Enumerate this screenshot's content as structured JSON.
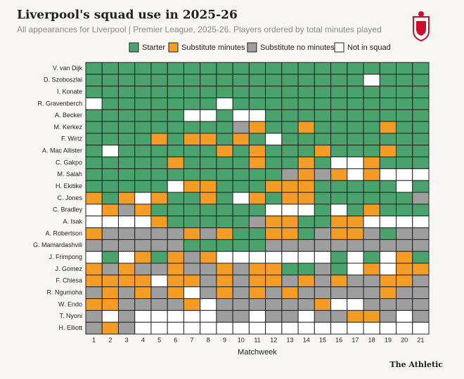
{
  "chart_data": {
    "type": "heatmap",
    "title": "Liverpool's squad use in 2025-26",
    "subtitle": "All appearances for Liverpool | Premier League, 2025-26. Players ordered by total minutes played",
    "x_label": "Matchweek",
    "source": "The Athletic",
    "categories": [
      1,
      2,
      3,
      4,
      5,
      6,
      7,
      8,
      9,
      10,
      11,
      12,
      13,
      14,
      15,
      16,
      17,
      18,
      19,
      20,
      21
    ],
    "legend": [
      {
        "name": "Starter",
        "color": "#4aa36c"
      },
      {
        "name": "Substitute minutes",
        "color": "#f39c26"
      },
      {
        "name": "Substitute no minutes",
        "color": "#9e9e9e"
      },
      {
        "name": "Not in squad",
        "color": "#ffffff"
      }
    ],
    "rows": [
      {
        "name": "V. van Dijk",
        "values": [
          0,
          0,
          0,
          0,
          0,
          0,
          0,
          0,
          0,
          0,
          0,
          0,
          0,
          0,
          0,
          0,
          0,
          0,
          0,
          0,
          0
        ]
      },
      {
        "name": "D. Szoboszlai",
        "values": [
          0,
          0,
          0,
          0,
          0,
          0,
          0,
          0,
          0,
          0,
          0,
          0,
          0,
          0,
          0,
          0,
          0,
          3,
          0,
          0,
          0
        ]
      },
      {
        "name": "I. Konate",
        "values": [
          0,
          0,
          0,
          0,
          0,
          0,
          0,
          0,
          0,
          0,
          0,
          0,
          0,
          0,
          0,
          0,
          0,
          0,
          0,
          0,
          0
        ]
      },
      {
        "name": "R. Gravenberch",
        "values": [
          3,
          0,
          0,
          0,
          0,
          0,
          0,
          0,
          3,
          0,
          0,
          0,
          0,
          0,
          0,
          0,
          0,
          0,
          0,
          0,
          0
        ]
      },
      {
        "name": "A. Becker",
        "values": [
          0,
          0,
          0,
          0,
          0,
          0,
          3,
          3,
          0,
          3,
          3,
          0,
          0,
          0,
          0,
          0,
          0,
          0,
          0,
          0,
          0
        ]
      },
      {
        "name": "M. Kerkez",
        "values": [
          0,
          0,
          0,
          0,
          0,
          0,
          0,
          0,
          0,
          2,
          1,
          0,
          0,
          1,
          0,
          0,
          0,
          0,
          1,
          0,
          0
        ]
      },
      {
        "name": "F. Wirtz",
        "values": [
          0,
          0,
          0,
          0,
          1,
          0,
          1,
          1,
          0,
          1,
          0,
          3,
          0,
          0,
          0,
          0,
          0,
          0,
          0,
          0,
          0
        ]
      },
      {
        "name": "A. Mac Allister",
        "values": [
          0,
          3,
          0,
          0,
          0,
          0,
          0,
          0,
          1,
          0,
          1,
          0,
          0,
          0,
          1,
          0,
          0,
          0,
          1,
          0,
          0
        ]
      },
      {
        "name": "C. Gakpo",
        "values": [
          0,
          0,
          0,
          0,
          0,
          1,
          0,
          0,
          0,
          0,
          1,
          0,
          0,
          1,
          0,
          3,
          3,
          1,
          0,
          0,
          0
        ]
      },
      {
        "name": "M. Salah",
        "values": [
          0,
          0,
          0,
          0,
          0,
          0,
          0,
          0,
          0,
          0,
          0,
          0,
          2,
          1,
          2,
          1,
          3,
          1,
          3,
          3,
          3
        ]
      },
      {
        "name": "H. Ekitike",
        "values": [
          0,
          0,
          0,
          0,
          0,
          3,
          1,
          1,
          0,
          0,
          0,
          1,
          1,
          1,
          0,
          0,
          0,
          0,
          0,
          3,
          0
        ]
      },
      {
        "name": "C. Jones",
        "values": [
          1,
          0,
          1,
          3,
          1,
          0,
          0,
          1,
          0,
          3,
          1,
          0,
          1,
          1,
          0,
          0,
          0,
          0,
          0,
          0,
          2
        ]
      },
      {
        "name": "C. Bradley",
        "values": [
          3,
          1,
          2,
          1,
          0,
          0,
          0,
          0,
          0,
          0,
          0,
          3,
          3,
          3,
          0,
          3,
          0,
          1,
          0,
          0,
          0
        ]
      },
      {
        "name": "A. Isak",
        "values": [
          3,
          3,
          3,
          3,
          1,
          0,
          0,
          0,
          0,
          0,
          2,
          1,
          1,
          0,
          0,
          1,
          1,
          3,
          3,
          3,
          3
        ]
      },
      {
        "name": "A. Robertson",
        "values": [
          1,
          2,
          2,
          2,
          2,
          2,
          1,
          2,
          1,
          0,
          0,
          1,
          1,
          0,
          2,
          1,
          1,
          2,
          0,
          2,
          2
        ]
      },
      {
        "name": "G. Mamardashvili",
        "values": [
          2,
          2,
          2,
          2,
          2,
          2,
          0,
          0,
          0,
          0,
          0,
          2,
          2,
          2,
          2,
          2,
          2,
          2,
          2,
          2,
          2
        ]
      },
      {
        "name": "J. Frimpong",
        "values": [
          3,
          0,
          3,
          1,
          0,
          1,
          2,
          1,
          3,
          3,
          3,
          3,
          3,
          3,
          3,
          0,
          3,
          0,
          3,
          1,
          0
        ]
      },
      {
        "name": "J. Gomez",
        "values": [
          1,
          2,
          1,
          2,
          2,
          1,
          2,
          2,
          1,
          2,
          1,
          1,
          0,
          0,
          2,
          0,
          3,
          1,
          3,
          1,
          1
        ]
      },
      {
        "name": "F. Chiesa",
        "values": [
          1,
          1,
          1,
          1,
          3,
          1,
          1,
          2,
          1,
          2,
          1,
          1,
          2,
          1,
          2,
          1,
          2,
          2,
          1,
          1,
          2
        ]
      },
      {
        "name": "R. Ngumoha",
        "values": [
          2,
          1,
          2,
          1,
          2,
          1,
          3,
          2,
          1,
          2,
          1,
          2,
          1,
          2,
          2,
          2,
          2,
          2,
          1,
          2,
          2
        ]
      },
      {
        "name": "W. Endo",
        "values": [
          1,
          1,
          2,
          2,
          2,
          2,
          1,
          3,
          2,
          2,
          2,
          2,
          2,
          2,
          1,
          3,
          3,
          2,
          2,
          2,
          2
        ]
      },
      {
        "name": "T. Nyoni",
        "values": [
          2,
          3,
          2,
          3,
          3,
          3,
          3,
          3,
          2,
          2,
          3,
          2,
          2,
          3,
          2,
          2,
          1,
          1,
          2,
          3,
          2
        ]
      },
      {
        "name": "H. Elliott",
        "values": [
          2,
          1,
          2,
          3,
          3,
          3,
          3,
          3,
          3,
          3,
          3,
          3,
          3,
          3,
          3,
          3,
          3,
          3,
          3,
          3,
          3
        ]
      }
    ]
  }
}
